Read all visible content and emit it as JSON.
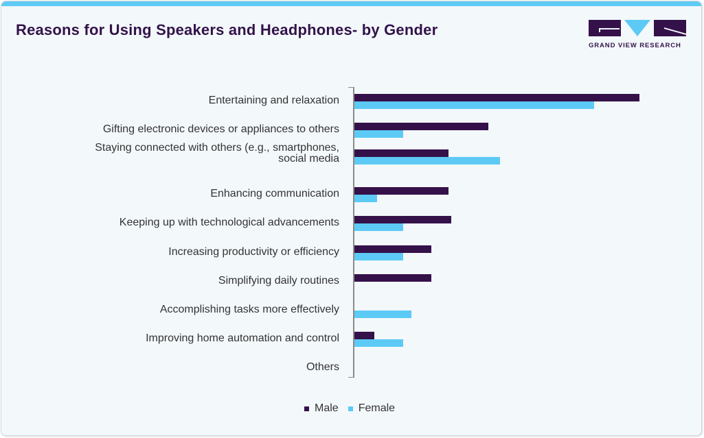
{
  "header": {
    "title": "Reasons for Using Speakers and Headphones- by Gender",
    "logo_text": "GRAND VIEW RESEARCH"
  },
  "colors": {
    "male": "#35114a",
    "female": "#5dcaf6",
    "accent": "#5fcbf4",
    "title": "#33134a"
  },
  "legend": {
    "male": "Male",
    "female": "Female"
  },
  "chart_data": {
    "type": "bar",
    "orientation": "horizontal",
    "title": "Reasons for Using Speakers and Headphones- by Gender",
    "xlabel": "",
    "ylabel": "",
    "value_axis_shown": false,
    "grid": false,
    "legend_position": "bottom",
    "categories": [
      "Entertaining and relaxation",
      "Gifting electronic devices or appliances to others",
      "Staying connected with others (e.g., smartphones, social media",
      "Enhancing communication",
      "Keeping up with technological advancements",
      "Increasing productivity or efficiency",
      "Simplifying daily routines",
      "Accomplishing tasks more effectively",
      "Improving home automation and control",
      "Others"
    ],
    "series": [
      {
        "name": "Male",
        "color": "#35114a",
        "values": [
          100,
          47,
          33,
          33,
          34,
          27,
          27,
          0,
          7,
          0
        ]
      },
      {
        "name": "Female",
        "color": "#5dcaf6",
        "values": [
          84,
          17,
          51,
          8,
          17,
          17,
          0,
          20,
          17,
          0
        ]
      }
    ],
    "xlim": [
      0,
      100
    ]
  },
  "rows": [
    {
      "label": "Entertaining and relaxation",
      "male": 100,
      "female": 84
    },
    {
      "label": "Gifting electronic devices or appliances to others",
      "male": 47,
      "female": 17
    },
    {
      "label": "Staying connected with others (e.g., smartphones,",
      "label2": "social media",
      "male": 33,
      "female": 51
    },
    {
      "label": "Enhancing communication",
      "male": 33,
      "female": 8
    },
    {
      "label": "Keeping up with technological advancements",
      "male": 34,
      "female": 17
    },
    {
      "label": "Increasing productivity or efficiency",
      "male": 27,
      "female": 17
    },
    {
      "label": "Simplifying daily routines",
      "male": 27,
      "female": 0
    },
    {
      "label": "Accomplishing tasks more effectively",
      "male": 0,
      "female": 20
    },
    {
      "label": "Improving home automation and control",
      "male": 7,
      "female": 17
    },
    {
      "label": "Others",
      "male": 0,
      "female": 0
    }
  ]
}
